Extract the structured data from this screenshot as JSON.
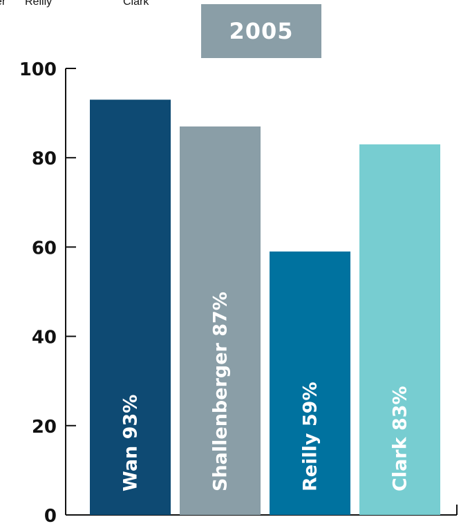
{
  "top_labels": [
    "er",
    "Reilly",
    "Clark"
  ],
  "chart_data": {
    "type": "bar",
    "title": "2005",
    "categories": [
      "Wan",
      "Shallenberger",
      "Reilly",
      "Clark"
    ],
    "values": [
      93,
      87,
      59,
      83
    ],
    "bar_labels": [
      "Wan 93%",
      "Shallenberger 87%",
      "Reilly 59%",
      "Clark 83%"
    ],
    "colors": [
      "#0e4a73",
      "#8a9ea7",
      "#00729f",
      "#77cdd1"
    ],
    "ylim": [
      0,
      100
    ],
    "yticks": [
      "0",
      "20",
      "40",
      "60",
      "80",
      "100"
    ],
    "xlabel": "",
    "ylabel": "",
    "grid": false,
    "legend": "none"
  }
}
